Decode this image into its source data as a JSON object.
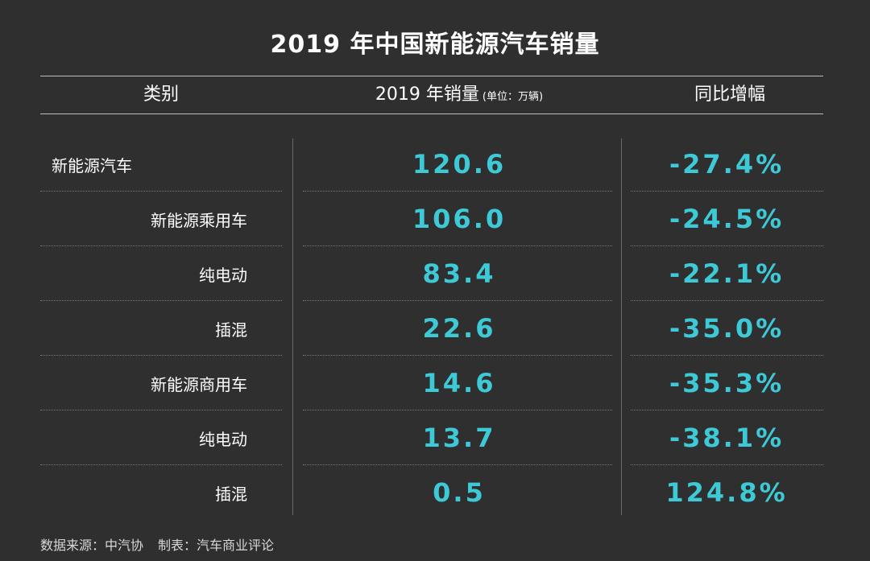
{
  "title": "2019 年中国新能源汽车销量",
  "headers": {
    "category": "类别",
    "sales": "2019 年销量",
    "sales_unit": "(单位：万辆)",
    "yoy": "同比增幅"
  },
  "chart_data": {
    "type": "table",
    "title": "2019 年中国新能源汽车销量",
    "columns": [
      "类别",
      "2019 年销量 (单位：万辆)",
      "同比增幅"
    ],
    "rows": [
      {
        "category": "新能源汽车",
        "level": 0,
        "sales": "120.6",
        "yoy": "-27.4%"
      },
      {
        "category": "新能源乘用车",
        "level": 1,
        "sales": "106.0",
        "yoy": "-24.5%"
      },
      {
        "category": "纯电动",
        "level": 2,
        "sales": "83.4",
        "yoy": "-22.1%"
      },
      {
        "category": "插混",
        "level": 2,
        "sales": "22.6",
        "yoy": "-35.0%"
      },
      {
        "category": "新能源商用车",
        "level": 1,
        "sales": "14.6",
        "yoy": "-35.3%"
      },
      {
        "category": "纯电动",
        "level": 2,
        "sales": "13.7",
        "yoy": "-38.1%"
      },
      {
        "category": "插混",
        "level": 2,
        "sales": "0.5",
        "yoy": "124.8%"
      }
    ]
  },
  "footer": {
    "source": "数据来源：中汽协",
    "maker": "制表：汽车商业评论"
  },
  "colors": {
    "background": "#2f2f2f",
    "value": "#3ec9d6",
    "text": "#ffffff"
  }
}
